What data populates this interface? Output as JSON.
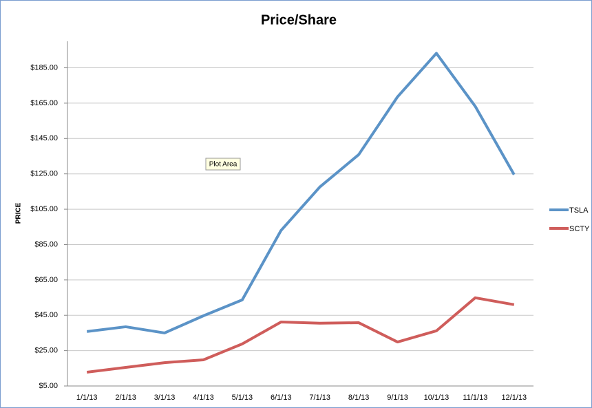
{
  "chart_data": {
    "type": "line",
    "title": "Price/Share",
    "y_label": "PRICE",
    "categories": [
      "1/1/13",
      "2/1/13",
      "3/1/13",
      "4/1/13",
      "5/1/13",
      "6/1/13",
      "7/1/13",
      "8/1/13",
      "9/1/13",
      "10/1/13",
      "11/1/13",
      "12/1/13"
    ],
    "series": [
      {
        "name": "TSLA",
        "color": "#5b93c7",
        "values": [
          35.8,
          38.5,
          35.0,
          44.7,
          53.7,
          93.0,
          117.6,
          135.9,
          168.6,
          193.2,
          163.2,
          124.6
        ]
      },
      {
        "name": "SCTY",
        "color": "#cf5d5b",
        "values": [
          12.8,
          15.5,
          18.2,
          19.8,
          28.8,
          41.2,
          40.5,
          40.8,
          29.9,
          36.2,
          54.9,
          51.0
        ]
      }
    ],
    "ylim": [
      5,
      200
    ],
    "yticks": [
      {
        "value": 5,
        "label": "$5.00"
      },
      {
        "value": 25,
        "label": "$25.00"
      },
      {
        "value": 45,
        "label": "$45.00"
      },
      {
        "value": 65,
        "label": "$65.00"
      },
      {
        "value": 85,
        "label": "$85.00"
      },
      {
        "value": 105,
        "label": "$105.00"
      },
      {
        "value": 125,
        "label": "$125.00"
      },
      {
        "value": 145,
        "label": "$145.00"
      },
      {
        "value": 165,
        "label": "$165.00"
      },
      {
        "value": 185,
        "label": "$185.00"
      }
    ],
    "grid": true,
    "legend": "right"
  },
  "tooltip": "Plot Area"
}
